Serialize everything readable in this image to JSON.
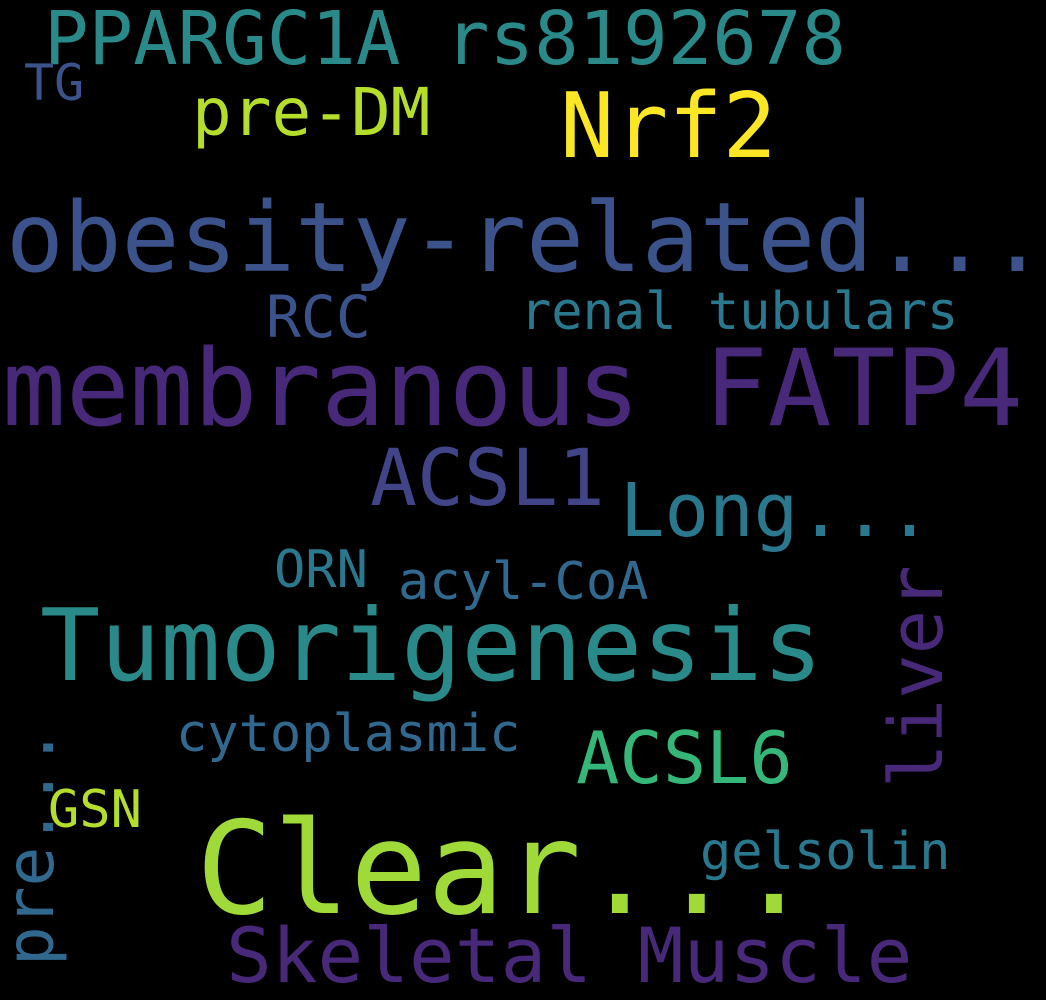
{
  "words": [
    {
      "id": "pparg",
      "text": "PPARGC1A rs8192678",
      "color": "#2a8a8a"
    },
    {
      "id": "tg",
      "text": "TG",
      "color": "#3b528b"
    },
    {
      "id": "predm",
      "text": "pre-DM",
      "color": "#b5de2b"
    },
    {
      "id": "nrf2",
      "text": "Nrf2",
      "color": "#fde725"
    },
    {
      "id": "obesity",
      "text": "obesity-related...",
      "color": "#3b528b"
    },
    {
      "id": "rcc",
      "text": "RCC",
      "color": "#3b528b"
    },
    {
      "id": "renal",
      "text": "renal tubulars",
      "color": "#2a788e"
    },
    {
      "id": "fatp4",
      "text": "membranous FATP4",
      "color": "#482878"
    },
    {
      "id": "acsl1",
      "text": "ACSL1",
      "color": "#414487"
    },
    {
      "id": "long",
      "text": "Long...",
      "color": "#2a788e"
    },
    {
      "id": "orn",
      "text": "ORN",
      "color": "#2a788e"
    },
    {
      "id": "acylcoa",
      "text": "acyl-CoA",
      "color": "#31688e"
    },
    {
      "id": "tumor",
      "text": "Tumorigenesis",
      "color": "#2a8a8a"
    },
    {
      "id": "liver",
      "text": "liver",
      "color": "#482878"
    },
    {
      "id": "cyto",
      "text": "cytoplasmic",
      "color": "#31688e"
    },
    {
      "id": "acsl6",
      "text": "ACSL6",
      "color": "#35b779"
    },
    {
      "id": "pre",
      "text": "pre...",
      "color": "#31688e"
    },
    {
      "id": "gsn",
      "text": "GSN",
      "color": "#b5de2b"
    },
    {
      "id": "gelsolin",
      "text": "gelsolin",
      "color": "#2a788e"
    },
    {
      "id": "clear",
      "text": "Clear...",
      "color": "#a0da39"
    },
    {
      "id": "skeletal",
      "text": "Skeletal Muscle",
      "color": "#482878"
    }
  ]
}
